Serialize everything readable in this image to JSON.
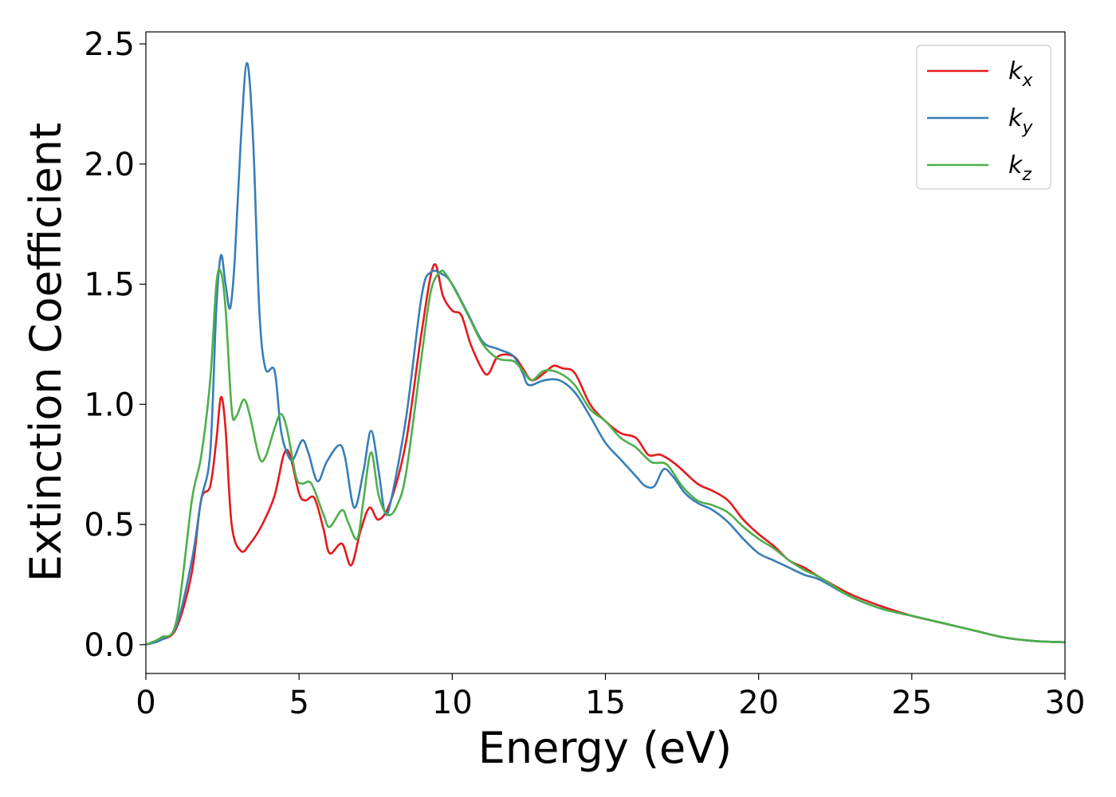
{
  "chart_data": {
    "type": "line",
    "title": "",
    "xlabel": "Energy (eV)",
    "ylabel": "Extinction Coefficient",
    "xlim": [
      0,
      30
    ],
    "ylim": [
      -0.12,
      2.55
    ],
    "xticks": [
      0,
      5,
      10,
      15,
      20,
      25,
      30
    ],
    "yticks": [
      0.0,
      0.5,
      1.0,
      1.5,
      2.0,
      2.5
    ],
    "xtick_labels": [
      "0",
      "5",
      "10",
      "15",
      "20",
      "25",
      "30"
    ],
    "ytick_labels": [
      "0.0",
      "0.5",
      "1.0",
      "1.5",
      "2.0",
      "2.5"
    ],
    "grid": false,
    "legend_position": "top-right",
    "series": [
      {
        "name": "k",
        "subscript": "x",
        "color": "#e41a1c",
        "points": [
          [
            0,
            0
          ],
          [
            0.5,
            0.02
          ],
          [
            1.0,
            0.07
          ],
          [
            1.5,
            0.3
          ],
          [
            1.8,
            0.6
          ],
          [
            2.1,
            0.66
          ],
          [
            2.3,
            0.85
          ],
          [
            2.45,
            1.03
          ],
          [
            2.6,
            0.9
          ],
          [
            2.8,
            0.5
          ],
          [
            3.1,
            0.39
          ],
          [
            3.4,
            0.42
          ],
          [
            3.8,
            0.5
          ],
          [
            4.2,
            0.62
          ],
          [
            4.5,
            0.79
          ],
          [
            4.7,
            0.79
          ],
          [
            5.0,
            0.63
          ],
          [
            5.2,
            0.6
          ],
          [
            5.5,
            0.61
          ],
          [
            5.8,
            0.48
          ],
          [
            6.0,
            0.38
          ],
          [
            6.4,
            0.42
          ],
          [
            6.7,
            0.33
          ],
          [
            7.0,
            0.47
          ],
          [
            7.3,
            0.57
          ],
          [
            7.6,
            0.52
          ],
          [
            8.0,
            0.6
          ],
          [
            8.5,
            0.85
          ],
          [
            9.0,
            1.3
          ],
          [
            9.4,
            1.58
          ],
          [
            9.7,
            1.45
          ],
          [
            10.0,
            1.39
          ],
          [
            10.3,
            1.37
          ],
          [
            10.6,
            1.25
          ],
          [
            11.0,
            1.14
          ],
          [
            11.2,
            1.13
          ],
          [
            11.5,
            1.2
          ],
          [
            12.0,
            1.2
          ],
          [
            12.3,
            1.15
          ],
          [
            12.6,
            1.1
          ],
          [
            13.0,
            1.13
          ],
          [
            13.3,
            1.16
          ],
          [
            13.6,
            1.15
          ],
          [
            14.0,
            1.13
          ],
          [
            14.5,
            1.0
          ],
          [
            15.0,
            0.93
          ],
          [
            15.5,
            0.88
          ],
          [
            16.0,
            0.86
          ],
          [
            16.4,
            0.79
          ],
          [
            16.8,
            0.79
          ],
          [
            17.3,
            0.75
          ],
          [
            18.0,
            0.67
          ],
          [
            18.5,
            0.64
          ],
          [
            19.0,
            0.6
          ],
          [
            19.5,
            0.52
          ],
          [
            20.0,
            0.46
          ],
          [
            20.5,
            0.41
          ],
          [
            21.0,
            0.35
          ],
          [
            21.5,
            0.32
          ],
          [
            22.0,
            0.28
          ],
          [
            23.0,
            0.21
          ],
          [
            24.0,
            0.16
          ],
          [
            25.0,
            0.12
          ],
          [
            26.0,
            0.09
          ],
          [
            27.0,
            0.06
          ],
          [
            28.0,
            0.03
          ],
          [
            29.0,
            0.015
          ],
          [
            30.0,
            0.01
          ]
        ]
      },
      {
        "name": "k",
        "subscript": "y",
        "color": "#377eb8",
        "points": [
          [
            0,
            0
          ],
          [
            0.5,
            0.02
          ],
          [
            1.0,
            0.08
          ],
          [
            1.5,
            0.35
          ],
          [
            1.8,
            0.6
          ],
          [
            2.1,
            0.8
          ],
          [
            2.3,
            1.4
          ],
          [
            2.45,
            1.62
          ],
          [
            2.6,
            1.5
          ],
          [
            2.75,
            1.4
          ],
          [
            2.9,
            1.6
          ],
          [
            3.1,
            2.1
          ],
          [
            3.3,
            2.42
          ],
          [
            3.5,
            2.1
          ],
          [
            3.7,
            1.4
          ],
          [
            3.9,
            1.15
          ],
          [
            4.2,
            1.14
          ],
          [
            4.4,
            0.9
          ],
          [
            4.6,
            0.8
          ],
          [
            4.8,
            0.77
          ],
          [
            5.1,
            0.85
          ],
          [
            5.3,
            0.8
          ],
          [
            5.6,
            0.68
          ],
          [
            5.9,
            0.76
          ],
          [
            6.3,
            0.83
          ],
          [
            6.5,
            0.78
          ],
          [
            6.8,
            0.57
          ],
          [
            7.1,
            0.72
          ],
          [
            7.35,
            0.89
          ],
          [
            7.6,
            0.72
          ],
          [
            7.8,
            0.55
          ],
          [
            8.0,
            0.6
          ],
          [
            8.5,
            0.95
          ],
          [
            9.0,
            1.45
          ],
          [
            9.3,
            1.55
          ],
          [
            9.7,
            1.54
          ],
          [
            10.0,
            1.5
          ],
          [
            10.5,
            1.38
          ],
          [
            11.0,
            1.26
          ],
          [
            11.5,
            1.23
          ],
          [
            12.0,
            1.2
          ],
          [
            12.3,
            1.13
          ],
          [
            12.5,
            1.08
          ],
          [
            13.0,
            1.1
          ],
          [
            13.5,
            1.1
          ],
          [
            14.0,
            1.05
          ],
          [
            14.5,
            0.95
          ],
          [
            15.0,
            0.84
          ],
          [
            15.5,
            0.77
          ],
          [
            16.0,
            0.7
          ],
          [
            16.3,
            0.66
          ],
          [
            16.6,
            0.66
          ],
          [
            16.9,
            0.73
          ],
          [
            17.2,
            0.7
          ],
          [
            17.6,
            0.63
          ],
          [
            18.0,
            0.59
          ],
          [
            18.5,
            0.56
          ],
          [
            19.0,
            0.51
          ],
          [
            19.5,
            0.44
          ],
          [
            20.0,
            0.38
          ],
          [
            20.5,
            0.35
          ],
          [
            21.0,
            0.32
          ],
          [
            21.5,
            0.29
          ],
          [
            22.0,
            0.27
          ],
          [
            23.0,
            0.2
          ],
          [
            24.0,
            0.15
          ],
          [
            25.0,
            0.12
          ],
          [
            26.0,
            0.09
          ],
          [
            27.0,
            0.06
          ],
          [
            28.0,
            0.03
          ],
          [
            29.0,
            0.015
          ],
          [
            30.0,
            0.01
          ]
        ]
      },
      {
        "name": "k",
        "subscript": "z",
        "color": "#4daf4a",
        "points": [
          [
            0,
            0
          ],
          [
            0.5,
            0.03
          ],
          [
            1.0,
            0.1
          ],
          [
            1.5,
            0.6
          ],
          [
            1.8,
            0.78
          ],
          [
            2.1,
            1.1
          ],
          [
            2.3,
            1.5
          ],
          [
            2.45,
            1.55
          ],
          [
            2.6,
            1.4
          ],
          [
            2.8,
            0.98
          ],
          [
            2.95,
            0.95
          ],
          [
            3.2,
            1.02
          ],
          [
            3.4,
            0.95
          ],
          [
            3.7,
            0.78
          ],
          [
            3.9,
            0.78
          ],
          [
            4.2,
            0.9
          ],
          [
            4.4,
            0.96
          ],
          [
            4.6,
            0.9
          ],
          [
            4.9,
            0.7
          ],
          [
            5.1,
            0.67
          ],
          [
            5.4,
            0.67
          ],
          [
            5.8,
            0.54
          ],
          [
            6.0,
            0.49
          ],
          [
            6.4,
            0.56
          ],
          [
            6.6,
            0.51
          ],
          [
            6.9,
            0.44
          ],
          [
            7.1,
            0.6
          ],
          [
            7.35,
            0.8
          ],
          [
            7.6,
            0.62
          ],
          [
            7.9,
            0.54
          ],
          [
            8.2,
            0.58
          ],
          [
            8.5,
            0.72
          ],
          [
            9.0,
            1.2
          ],
          [
            9.3,
            1.47
          ],
          [
            9.6,
            1.55
          ],
          [
            9.8,
            1.54
          ],
          [
            10.2,
            1.45
          ],
          [
            10.6,
            1.35
          ],
          [
            11.0,
            1.25
          ],
          [
            11.5,
            1.19
          ],
          [
            12.0,
            1.18
          ],
          [
            12.3,
            1.14
          ],
          [
            12.6,
            1.1
          ],
          [
            13.0,
            1.14
          ],
          [
            13.5,
            1.13
          ],
          [
            14.0,
            1.08
          ],
          [
            14.5,
            0.98
          ],
          [
            15.0,
            0.93
          ],
          [
            15.5,
            0.86
          ],
          [
            16.0,
            0.82
          ],
          [
            16.5,
            0.76
          ],
          [
            17.0,
            0.75
          ],
          [
            17.5,
            0.66
          ],
          [
            18.0,
            0.6
          ],
          [
            18.5,
            0.58
          ],
          [
            19.0,
            0.55
          ],
          [
            19.5,
            0.49
          ],
          [
            20.0,
            0.44
          ],
          [
            20.5,
            0.4
          ],
          [
            21.0,
            0.35
          ],
          [
            21.5,
            0.31
          ],
          [
            22.0,
            0.28
          ],
          [
            23.0,
            0.2
          ],
          [
            24.0,
            0.15
          ],
          [
            25.0,
            0.12
          ],
          [
            26.0,
            0.09
          ],
          [
            27.0,
            0.06
          ],
          [
            28.0,
            0.03
          ],
          [
            29.0,
            0.015
          ],
          [
            30.0,
            0.01
          ]
        ]
      }
    ]
  }
}
